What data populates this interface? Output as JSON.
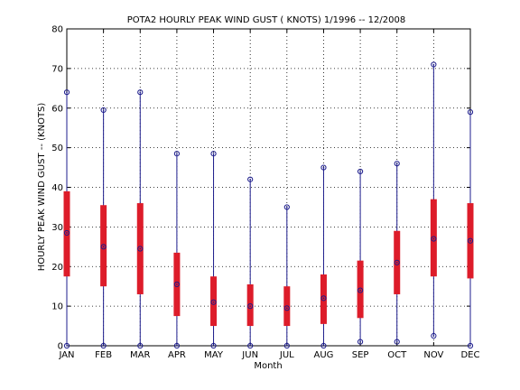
{
  "chart_data": {
    "type": "box",
    "title": "POTA2  HOURLY PEAK WIND GUST ( KNOTS) 1/1996 -- 12/2008",
    "xlabel": "Month",
    "ylabel": "HOURLY PEAK WIND GUST --  (KNOTS)",
    "ylim": [
      0,
      80
    ],
    "yticks": [
      "0",
      "10",
      "20",
      "30",
      "40",
      "50",
      "60",
      "70",
      "80"
    ],
    "grid": true,
    "categories": [
      "JAN",
      "FEB",
      "MAR",
      "APR",
      "MAY",
      "JUN",
      "JUL",
      "AUG",
      "SEP",
      "OCT",
      "NOV",
      "DEC"
    ],
    "max": [
      64,
      59.5,
      64,
      48.5,
      48.5,
      42,
      35,
      45,
      44,
      46,
      71,
      59
    ],
    "min": [
      0,
      0,
      0,
      0,
      0,
      0,
      0,
      0,
      1,
      1,
      2.5,
      0
    ],
    "q3": [
      39,
      35.5,
      36,
      23.5,
      17.5,
      15.5,
      15,
      18,
      21.5,
      29,
      37,
      36
    ],
    "q1": [
      17.5,
      15,
      13,
      7.5,
      5,
      5,
      5,
      5.5,
      7,
      13,
      17.5,
      17
    ],
    "median": [
      28.5,
      25,
      24.5,
      15.5,
      11,
      10,
      9.5,
      12,
      14,
      21,
      27,
      26.5
    ],
    "colors": {
      "whisker": "#1c1c8c",
      "box": "#dd1c2a",
      "marker": "#1c1c8c"
    }
  }
}
